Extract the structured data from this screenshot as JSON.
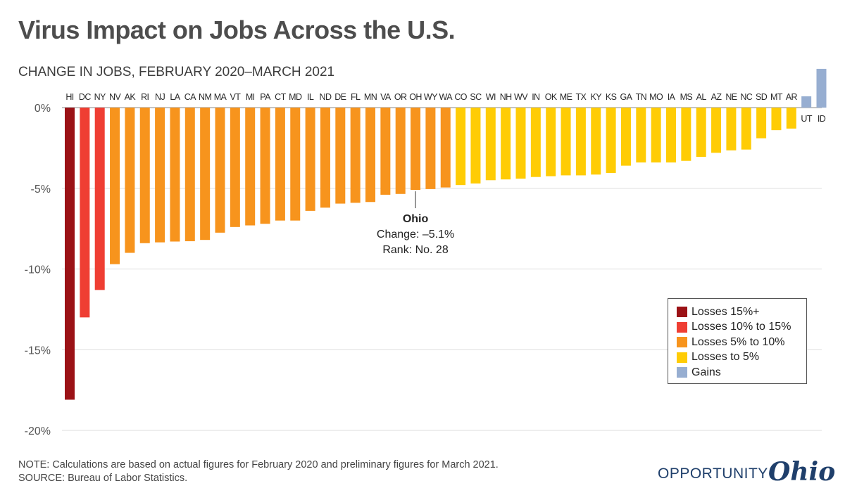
{
  "title": "Virus Impact on Jobs Across the U.S.",
  "subtitle": "CHANGE IN JOBS, FEBRUARY 2020–MARCH 2021",
  "chart_data": {
    "type": "bar",
    "ylim": [
      -20,
      0.5
    ],
    "yticks": [
      0,
      -5,
      -10,
      -15,
      -20
    ],
    "ytick_labels": [
      "0%",
      "-5%",
      "-10%",
      "-15%",
      "-20%"
    ],
    "grid": true,
    "categories": [
      "HI",
      "DC",
      "NY",
      "NV",
      "AK",
      "RI",
      "NJ",
      "LA",
      "CA",
      "NM",
      "MA",
      "VT",
      "MI",
      "PA",
      "CT",
      "MD",
      "IL",
      "ND",
      "DE",
      "FL",
      "MN",
      "VA",
      "OR",
      "OH",
      "WY",
      "WA",
      "CO",
      "SC",
      "WI",
      "NH",
      "WV",
      "IN",
      "OK",
      "ME",
      "TX",
      "KY",
      "KS",
      "GA",
      "TN",
      "MO",
      "IA",
      "MS",
      "AL",
      "AZ",
      "NE",
      "NC",
      "SD",
      "MT",
      "AR",
      "UT",
      "ID"
    ],
    "values": [
      -18.1,
      -13.0,
      -11.3,
      -9.7,
      -9.0,
      -8.4,
      -8.35,
      -8.3,
      -8.28,
      -8.2,
      -7.75,
      -7.4,
      -7.3,
      -7.2,
      -7.0,
      -7.0,
      -6.4,
      -6.2,
      -5.95,
      -5.9,
      -5.85,
      -5.4,
      -5.35,
      -5.1,
      -5.05,
      -4.95,
      -4.8,
      -4.7,
      -4.5,
      -4.45,
      -4.4,
      -4.3,
      -4.25,
      -4.2,
      -4.2,
      -4.15,
      -4.05,
      -3.6,
      -3.4,
      -3.4,
      -3.4,
      -3.3,
      -3.05,
      -2.8,
      -2.65,
      -2.6,
      -1.9,
      -1.4,
      -1.3,
      0.7,
      2.4
    ],
    "colors": {
      "losses_15_plus": "#9b1216",
      "losses_10_15": "#ef3e33",
      "losses_5_10": "#f7941d",
      "losses_to_5": "#ffcc05",
      "gains": "#97aed1"
    },
    "legend_position": "bottom-right",
    "legend": [
      {
        "label": "Losses 15%+",
        "color": "#9b1216"
      },
      {
        "label": "Losses 10% to 15%",
        "color": "#ef3e33"
      },
      {
        "label": "Losses 5% to 10%",
        "color": "#f7941d"
      },
      {
        "label": "Losses to 5%",
        "color": "#ffcc05"
      },
      {
        "label": "Gains",
        "color": "#97aed1"
      }
    ],
    "annotation": {
      "state": "OH",
      "name": "Ohio",
      "change": "Change: –5.1%",
      "rank": "Rank: No. 28"
    }
  },
  "footnote": {
    "note": "NOTE: Calculations are based on actual figures for February 2020 and preliminary figures for March 2021.",
    "source": "SOURCE: Bureau of Labor Statistics."
  },
  "logo": {
    "word": "OPPORTUNITY",
    "script": "Ohio"
  }
}
